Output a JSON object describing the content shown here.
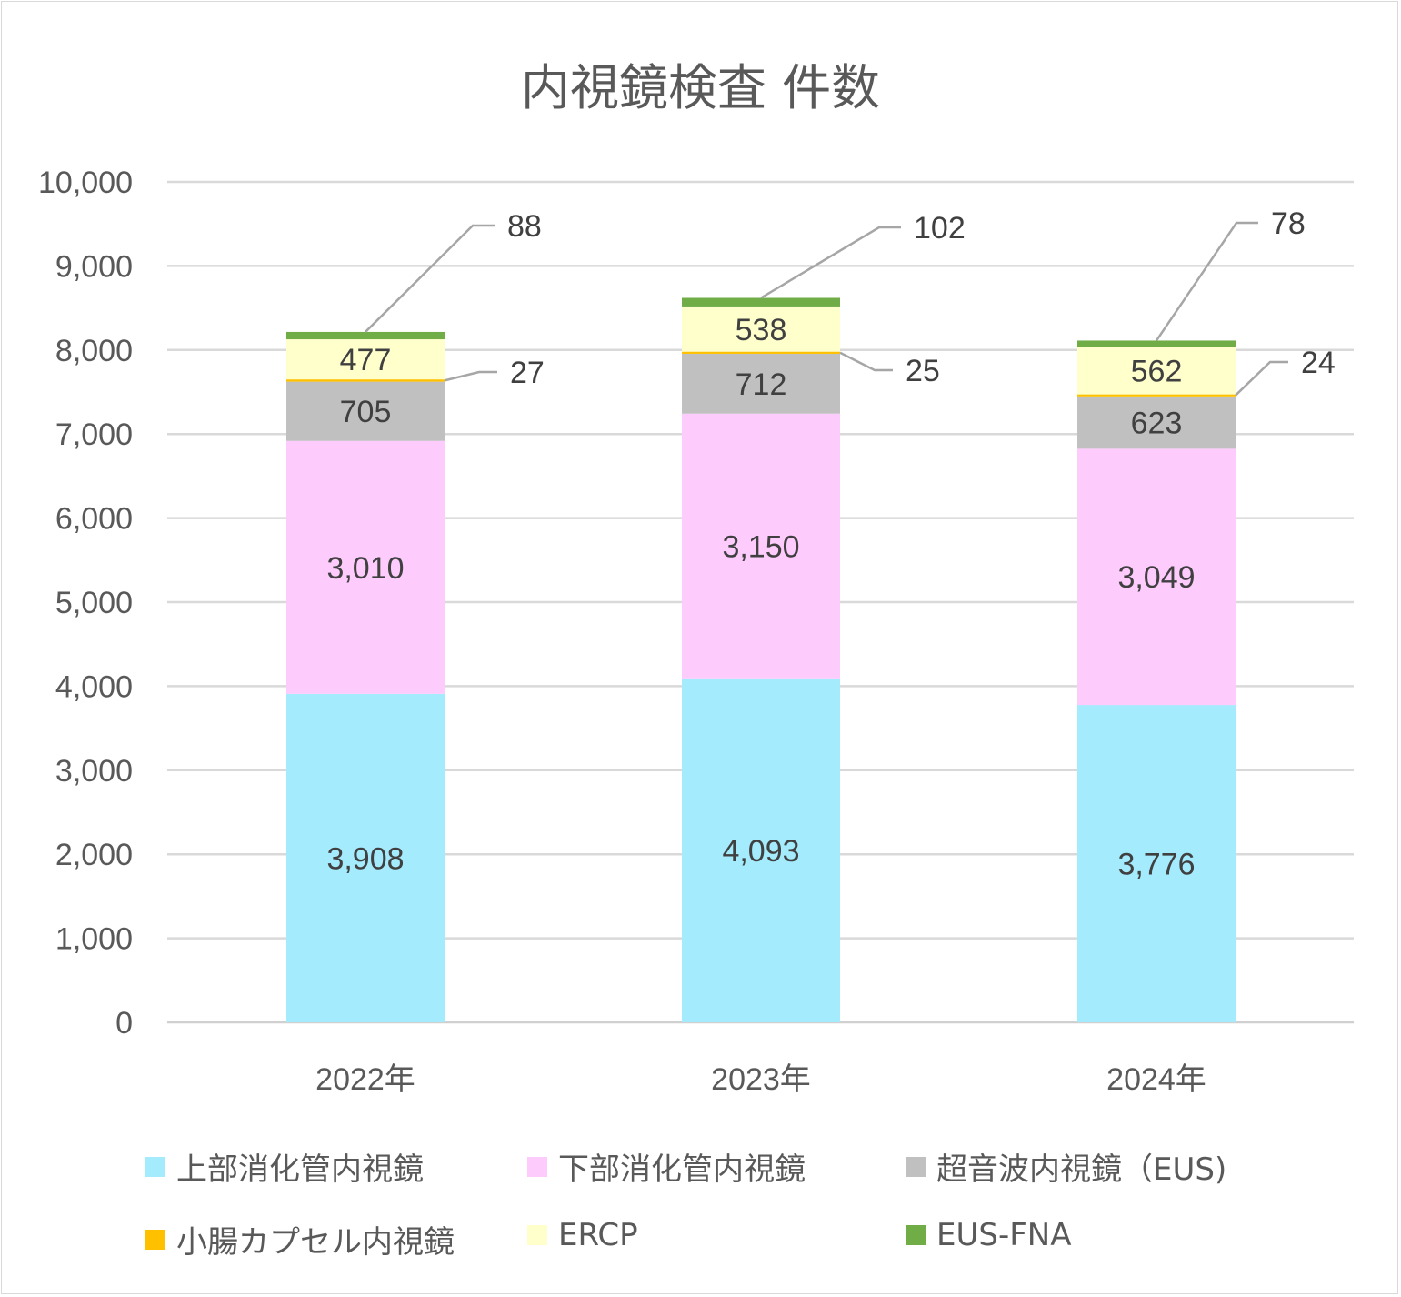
{
  "chart_data": {
    "type": "bar",
    "stacked": true,
    "title": "内視鏡検査 件数",
    "categories": [
      "2022年",
      "2023年",
      "2024年"
    ],
    "series": [
      {
        "name": "上部消化管内視鏡",
        "values": [
          3908,
          4093,
          3776
        ],
        "labels": [
          "3,908",
          "4,093",
          "3,776"
        ],
        "color": "#a3ebfd"
      },
      {
        "name": "下部消化管内視鏡",
        "values": [
          3010,
          3150,
          3049
        ],
        "labels": [
          "3,010",
          "3,150",
          "3,049"
        ],
        "color": "#fdccfd"
      },
      {
        "name": "超音波内視鏡（EUS)",
        "values": [
          705,
          712,
          623
        ],
        "labels": [
          "705",
          "712",
          "623"
        ],
        "color": "#c0c0c0"
      },
      {
        "name": "小腸カプセル内視鏡",
        "values": [
          27,
          25,
          24
        ],
        "labels": [
          "27",
          "25",
          "24"
        ],
        "color": "#ffc000"
      },
      {
        "name": "ERCP",
        "values": [
          477,
          538,
          562
        ],
        "labels": [
          "477",
          "538",
          "562"
        ],
        "color": "#ffffcc"
      },
      {
        "name": "EUS-FNA",
        "values": [
          88,
          102,
          78
        ],
        "labels": [
          "88",
          "102",
          "78"
        ],
        "color": "#70ad47"
      }
    ],
    "ylim": [
      0,
      10000
    ],
    "yticks": [
      "0",
      "1,000",
      "2,000",
      "3,000",
      "4,000",
      "5,000",
      "6,000",
      "7,000",
      "8,000",
      "9,000",
      "10,000"
    ],
    "grid": true,
    "legend_position": "bottom"
  }
}
